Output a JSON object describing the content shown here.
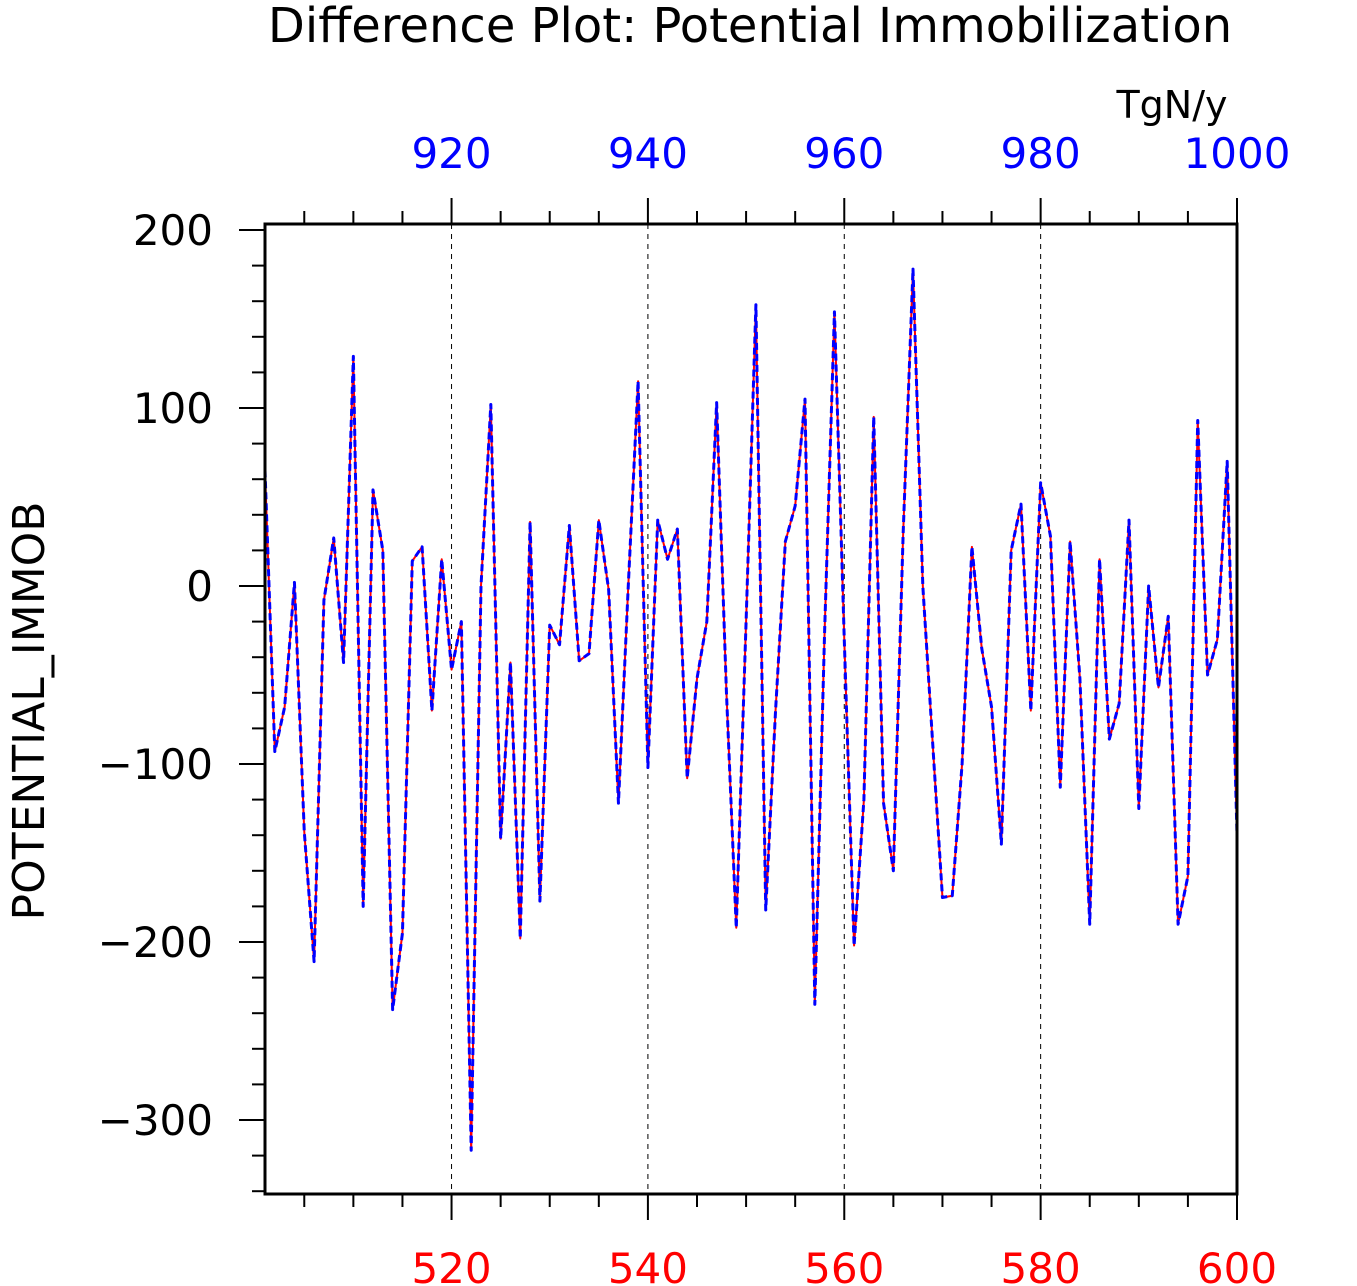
{
  "chart_data": {
    "type": "line",
    "title": "Difference Plot: Potential Immobilization",
    "units": "TgN/y",
    "ylabel": "POTENTIAL_IMMOB",
    "ylim": [
      -345,
      200
    ],
    "y_ticks": [
      200,
      100,
      0,
      -100,
      -200,
      -300
    ],
    "x_bottom": {
      "range": [
        501,
        600
      ],
      "ticks": [
        520,
        540,
        560,
        580,
        600
      ],
      "color": "#ff0000"
    },
    "x_top": {
      "range": [
        901,
        1000
      ],
      "ticks": [
        920,
        940,
        960,
        980,
        1000
      ],
      "color": "#0000ff"
    },
    "grid_x": true,
    "series": [
      {
        "color": "#ff0000",
        "style": "solid",
        "values": [
          65,
          -93,
          -68,
          2,
          -138,
          -211,
          -8,
          27,
          -43,
          129,
          -180,
          54,
          20,
          -238,
          -195,
          14,
          22,
          -70,
          15,
          -47,
          -20,
          -317,
          0,
          102,
          -142,
          -43,
          -198,
          36,
          -177,
          -22,
          -33,
          34,
          -42,
          -38,
          37,
          -2,
          -122,
          0,
          115,
          -102,
          37,
          15,
          32,
          -108,
          -52,
          -20,
          103,
          -60,
          -192,
          -20,
          158,
          -182,
          -70,
          25,
          45,
          105,
          -235,
          -25,
          154,
          -30,
          -202,
          -120,
          95,
          -122,
          -160,
          30,
          178,
          0,
          -88,
          -175,
          -174,
          -100,
          22,
          -35,
          -68,
          -145,
          20,
          46,
          -70,
          58,
          28,
          -113,
          25,
          -52,
          -190,
          15,
          -86,
          -66,
          37,
          -125,
          0,
          -57,
          -17,
          -190,
          -163,
          93,
          -50,
          -30,
          70,
          -140
        ]
      },
      {
        "color": "#0000ff",
        "style": "dashed",
        "values": [
          65,
          -93,
          -68,
          2,
          -138,
          -211,
          -8,
          27,
          -43,
          129,
          -180,
          54,
          20,
          -238,
          -195,
          14,
          22,
          -70,
          15,
          -47,
          -20,
          -317,
          0,
          102,
          -142,
          -43,
          -198,
          36,
          -177,
          -22,
          -33,
          34,
          -42,
          -38,
          37,
          -2,
          -122,
          0,
          115,
          -102,
          37,
          15,
          32,
          -108,
          -52,
          -20,
          103,
          -60,
          -192,
          -20,
          158,
          -182,
          -70,
          25,
          45,
          105,
          -235,
          -25,
          154,
          -30,
          -202,
          -120,
          95,
          -122,
          -160,
          30,
          178,
          0,
          -88,
          -175,
          -174,
          -100,
          22,
          -35,
          -68,
          -145,
          20,
          46,
          -70,
          58,
          28,
          -113,
          25,
          -52,
          -190,
          15,
          -86,
          -66,
          37,
          -125,
          0,
          -57,
          -17,
          -190,
          -163,
          93,
          -50,
          -30,
          70,
          -140
        ]
      }
    ]
  }
}
